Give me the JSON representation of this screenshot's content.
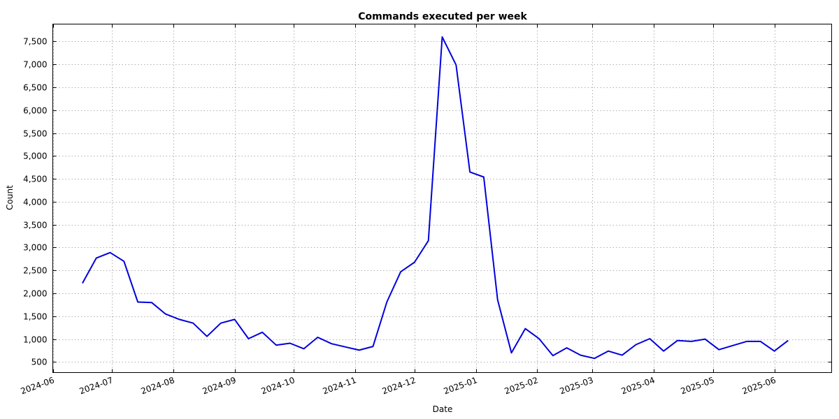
{
  "chart_data": {
    "type": "line",
    "title": "Commands executed per week",
    "xlabel": "Date",
    "ylabel": "Count",
    "x_ticks": [
      "2024-06",
      "2024-07",
      "2024-08",
      "2024-09",
      "2024-10",
      "2024-11",
      "2024-12",
      "2025-01",
      "2025-02",
      "2025-03",
      "2025-04",
      "2025-05",
      "2025-06"
    ],
    "y_ticks": [
      500,
      1000,
      1500,
      2000,
      2500,
      3000,
      3500,
      4000,
      4500,
      5000,
      5500,
      6000,
      6500,
      7000,
      7500
    ],
    "y_tick_labels": [
      "500",
      "1,000",
      "1,500",
      "2,000",
      "2,500",
      "3,000",
      "3,500",
      "4,000",
      "4,500",
      "5,000",
      "5,500",
      "6,000",
      "6,500",
      "7,000",
      "7,500"
    ],
    "xlim": [
      "2024-06-01",
      "2025-06-30"
    ],
    "ylim": [
      270,
      7880
    ],
    "grid": true,
    "line_color": "#0000dd",
    "series": [
      {
        "x": [
          "2024-06-16",
          "2024-06-23",
          "2024-06-30",
          "2024-07-07",
          "2024-07-14",
          "2024-07-21",
          "2024-07-28",
          "2024-08-04",
          "2024-08-11",
          "2024-08-18",
          "2024-08-25",
          "2024-09-01",
          "2024-09-08",
          "2024-09-15",
          "2024-09-22",
          "2024-09-29",
          "2024-10-06",
          "2024-10-13",
          "2024-10-20",
          "2024-10-27",
          "2024-11-03",
          "2024-11-10",
          "2024-11-17",
          "2024-11-24",
          "2024-12-01",
          "2024-12-08",
          "2024-12-15",
          "2024-12-22",
          "2024-12-29",
          "2025-01-05",
          "2025-01-12",
          "2025-01-19",
          "2025-01-26",
          "2025-02-02",
          "2025-02-09",
          "2025-02-16",
          "2025-02-23",
          "2025-03-02",
          "2025-03-09",
          "2025-03-16",
          "2025-03-23",
          "2025-03-30",
          "2025-04-06",
          "2025-04-13",
          "2025-04-20",
          "2025-04-27",
          "2025-05-04",
          "2025-05-11",
          "2025-05-18",
          "2025-05-25",
          "2025-06-01",
          "2025-06-08"
        ],
        "values": [
          2220,
          2770,
          2890,
          2700,
          1810,
          1800,
          1550,
          1430,
          1350,
          1060,
          1350,
          1430,
          1010,
          1150,
          870,
          910,
          790,
          1040,
          900,
          830,
          760,
          840,
          1810,
          2470,
          2680,
          3150,
          7600,
          6990,
          4650,
          4540,
          1860,
          700,
          1230,
          1010,
          640,
          810,
          650,
          580,
          740,
          650,
          880,
          1010,
          740,
          970,
          950,
          1000,
          770,
          860,
          950,
          950,
          740,
          970
        ]
      }
    ]
  }
}
